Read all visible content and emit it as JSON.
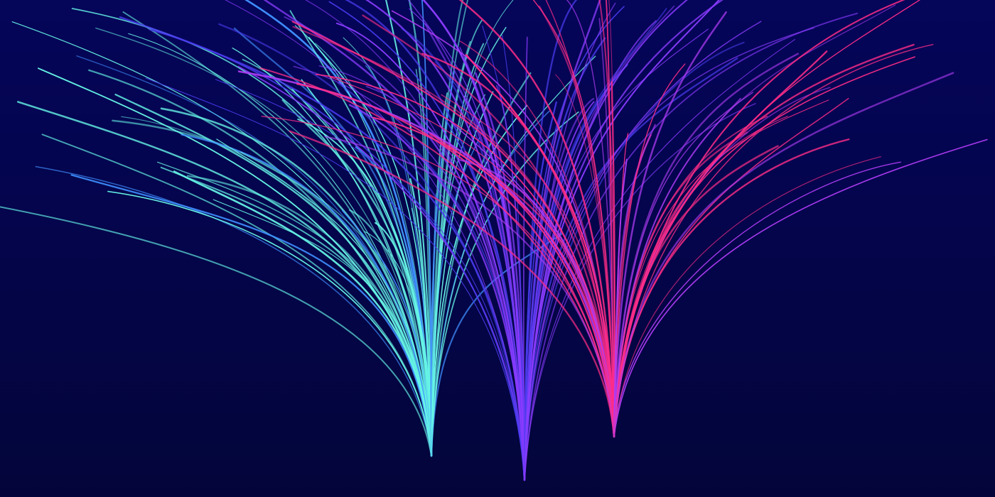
{
  "artwork": {
    "kind": "abstract generative line art",
    "background_top": "#05055a",
    "background_bottom": "#03053a",
    "fountains": [
      {
        "name": "cyan-fountain",
        "color": "#66f5e6",
        "secondary_color": "#3f8fff",
        "strand_count": 70,
        "spread_direction": "left"
      },
      {
        "name": "violet-fountain",
        "color": "#8a3cff",
        "secondary_color": "#4a3cf0",
        "strand_count": 55,
        "spread_direction": "up"
      },
      {
        "name": "pink-fountain",
        "color": "#ff2d87",
        "secondary_color": "#b03cf5",
        "strand_count": 60,
        "spread_direction": "right"
      }
    ]
  }
}
